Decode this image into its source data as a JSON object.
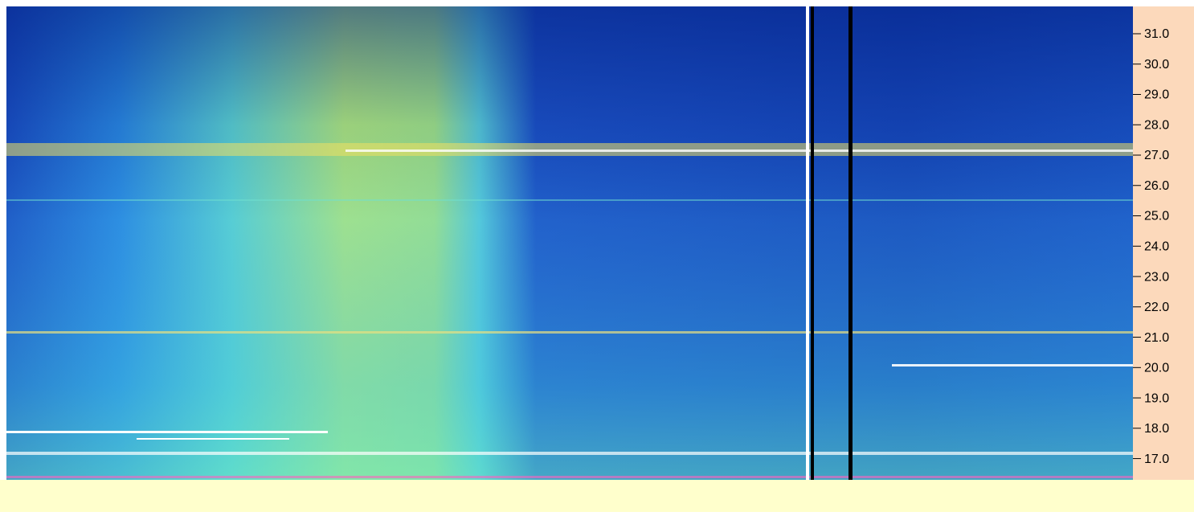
{
  "spectrogram": {
    "ylim": [
      16.3,
      31.9
    ],
    "yticks": [
      {
        "value": 17,
        "label": "17.0"
      },
      {
        "value": 18,
        "label": "18.0"
      },
      {
        "value": 19,
        "label": "19.0"
      },
      {
        "value": 20,
        "label": "20.0"
      },
      {
        "value": 21,
        "label": "21.0"
      },
      {
        "value": 22,
        "label": "22.0"
      },
      {
        "value": 23,
        "label": "23.0"
      },
      {
        "value": 24,
        "label": "24.0"
      },
      {
        "value": 25,
        "label": "25.0"
      },
      {
        "value": 26,
        "label": "26.0"
      },
      {
        "value": 27,
        "label": "27.0"
      },
      {
        "value": 28,
        "label": "28.0"
      },
      {
        "value": 29,
        "label": "29.0"
      },
      {
        "value": 30,
        "label": "30.0"
      },
      {
        "value": 31,
        "label": "31.0"
      }
    ]
  }
}
